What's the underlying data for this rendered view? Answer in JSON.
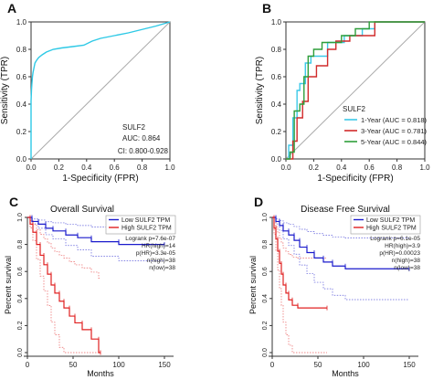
{
  "chart_data": [
    {
      "panel": "A",
      "type": "line",
      "xlabel": "1-Specificity (FPR)",
      "ylabel": "Sensitivity (TPR)",
      "xlim": [
        0,
        1
      ],
      "ylim": [
        0,
        1
      ],
      "xticks": [
        "0.0",
        "0.2",
        "0.4",
        "0.6",
        "0.8",
        "1.0"
      ],
      "yticks": [
        "0.0",
        "0.2",
        "0.4",
        "0.6",
        "0.8",
        "1.0"
      ],
      "grid": false,
      "series": [
        {
          "name": "SULF2",
          "color": "#2ec9e6",
          "x": [
            0,
            0,
            0.003,
            0.006,
            0.01,
            0.014,
            0.02,
            0.028,
            0.04,
            0.055,
            0.08,
            0.11,
            0.16,
            0.22,
            0.3,
            0.38,
            0.44,
            0.5,
            0.6,
            0.7,
            0.82,
            0.9,
            1.0
          ],
          "y": [
            0,
            0.42,
            0.5,
            0.55,
            0.6,
            0.63,
            0.66,
            0.7,
            0.72,
            0.74,
            0.76,
            0.78,
            0.8,
            0.81,
            0.82,
            0.83,
            0.86,
            0.88,
            0.9,
            0.92,
            0.95,
            0.97,
            1.0
          ]
        }
      ],
      "diagonal": true,
      "legend_title": "SULF2",
      "annotations": [
        "AUC: 0.864",
        "CI: 0.800-0.928"
      ]
    },
    {
      "panel": "B",
      "type": "line",
      "xlabel": "1-Specificity (FPR)",
      "ylabel": "Sensitivity (TPR)",
      "xlim": [
        0,
        1
      ],
      "ylim": [
        0,
        1
      ],
      "xticks": [
        "0.0",
        "0.2",
        "0.4",
        "0.6",
        "0.8",
        "1.0"
      ],
      "yticks": [
        "0.0",
        "0.2",
        "0.4",
        "0.6",
        "0.8",
        "1.0"
      ],
      "grid": false,
      "diagonal": true,
      "legend_title": "SULF2",
      "legend_position": "bottom-right",
      "series": [
        {
          "name": "1-Year (AUC = 0.818)",
          "color": "#3cc8e8",
          "x": [
            0,
            0.02,
            0.02,
            0.05,
            0.05,
            0.08,
            0.08,
            0.1,
            0.1,
            0.14,
            0.14,
            0.18,
            0.18,
            0.3,
            0.3,
            0.42,
            0.42,
            0.55,
            0.55,
            0.64,
            0.64,
            1.0
          ],
          "y": [
            0,
            0,
            0.1,
            0.1,
            0.3,
            0.3,
            0.5,
            0.5,
            0.55,
            0.55,
            0.7,
            0.7,
            0.75,
            0.75,
            0.85,
            0.85,
            0.9,
            0.9,
            0.95,
            0.95,
            1.0,
            1.0
          ]
        },
        {
          "name": "3-Year (AUC = 0.781)",
          "color": "#d12b2b",
          "x": [
            0,
            0.05,
            0.05,
            0.08,
            0.08,
            0.12,
            0.12,
            0.16,
            0.16,
            0.22,
            0.22,
            0.3,
            0.3,
            0.36,
            0.36,
            0.46,
            0.46,
            0.64,
            0.64,
            1.0
          ],
          "y": [
            0,
            0,
            0.13,
            0.13,
            0.3,
            0.3,
            0.42,
            0.42,
            0.6,
            0.6,
            0.68,
            0.68,
            0.8,
            0.8,
            0.86,
            0.86,
            0.9,
            0.9,
            1.0,
            1.0
          ]
        },
        {
          "name": "5-Year (AUC = 0.844)",
          "color": "#2e9e3a",
          "x": [
            0,
            0.03,
            0.03,
            0.06,
            0.06,
            0.1,
            0.1,
            0.13,
            0.13,
            0.16,
            0.16,
            0.2,
            0.2,
            0.26,
            0.26,
            0.4,
            0.4,
            0.5,
            0.5,
            0.6,
            0.6,
            1.0
          ],
          "y": [
            0,
            0,
            0.05,
            0.05,
            0.35,
            0.35,
            0.4,
            0.4,
            0.6,
            0.6,
            0.75,
            0.75,
            0.8,
            0.8,
            0.85,
            0.85,
            0.9,
            0.9,
            0.95,
            0.95,
            1.0,
            1.0
          ]
        }
      ]
    },
    {
      "panel": "C",
      "type": "line",
      "title": "Overall Survival",
      "xlabel": "Months",
      "ylabel": "Percent survival",
      "xlim": [
        0,
        160
      ],
      "ylim": [
        0,
        1
      ],
      "xticks": [
        "0",
        "50",
        "100",
        "150"
      ],
      "yticks": [
        "0.0",
        "0.2",
        "0.4",
        "0.6",
        "0.8",
        "1.0"
      ],
      "legend_position": "top-right",
      "stats": [
        "Logrank p=7.6e-07",
        "HR(high)=14",
        "p(HR)=3.3e-05",
        "n(high)=38",
        "n(low)=38"
      ],
      "series": [
        {
          "name": "Low SULF2 TPM",
          "color": "#1a1acc",
          "x": [
            0,
            5,
            5,
            12,
            12,
            20,
            20,
            28,
            28,
            42,
            42,
            55,
            55,
            70,
            70,
            100,
            100,
            150
          ],
          "y": [
            1.0,
            1.0,
            0.97,
            0.97,
            0.95,
            0.95,
            0.92,
            0.92,
            0.9,
            0.9,
            0.87,
            0.87,
            0.85,
            0.85,
            0.82,
            0.82,
            0.8,
            0.8
          ]
        },
        {
          "name": "High SULF2 TPM",
          "color": "#e02020",
          "x": [
            0,
            3,
            3,
            6,
            6,
            10,
            10,
            14,
            14,
            18,
            18,
            22,
            22,
            26,
            26,
            30,
            30,
            35,
            35,
            40,
            40,
            46,
            46,
            52,
            52,
            60,
            60,
            70,
            70,
            78,
            78,
            80
          ],
          "y": [
            1.0,
            1.0,
            0.95,
            0.95,
            0.89,
            0.89,
            0.8,
            0.8,
            0.72,
            0.72,
            0.65,
            0.65,
            0.58,
            0.58,
            0.5,
            0.5,
            0.44,
            0.44,
            0.38,
            0.38,
            0.33,
            0.33,
            0.27,
            0.27,
            0.22,
            0.22,
            0.17,
            0.17,
            0.1,
            0.1,
            0.0,
            0.0
          ]
        }
      ]
    },
    {
      "panel": "D",
      "type": "line",
      "title": "Disease Free Survival",
      "xlabel": "Months",
      "ylabel": "Percent survival",
      "xlim": [
        0,
        160
      ],
      "ylim": [
        0,
        1
      ],
      "xticks": [
        "0",
        "50",
        "100",
        "150"
      ],
      "yticks": [
        "0.0",
        "0.2",
        "0.4",
        "0.6",
        "0.8",
        "1.0"
      ],
      "legend_position": "top-right",
      "stats": [
        "Logrank p=6.1e-05",
        "HR(high)=3.9",
        "p(HR)=0.00023",
        "n(high)=38",
        "n(low)=38"
      ],
      "series": [
        {
          "name": "Low SULF2 TPM",
          "color": "#1a1acc",
          "x": [
            0,
            4,
            4,
            8,
            8,
            12,
            12,
            18,
            18,
            24,
            24,
            30,
            30,
            38,
            38,
            46,
            46,
            56,
            56,
            66,
            66,
            80,
            80,
            150
          ],
          "y": [
            1.0,
            1.0,
            0.97,
            0.97,
            0.94,
            0.94,
            0.9,
            0.9,
            0.87,
            0.87,
            0.83,
            0.83,
            0.78,
            0.78,
            0.74,
            0.74,
            0.7,
            0.7,
            0.67,
            0.67,
            0.64,
            0.64,
            0.62,
            0.62
          ]
        },
        {
          "name": "High SULF2 TPM",
          "color": "#e02020",
          "x": [
            0,
            2,
            2,
            4,
            4,
            6,
            6,
            8,
            8,
            10,
            10,
            12,
            12,
            15,
            15,
            18,
            18,
            22,
            22,
            28,
            28,
            60
          ],
          "y": [
            1.0,
            1.0,
            0.92,
            0.92,
            0.84,
            0.84,
            0.75,
            0.75,
            0.66,
            0.66,
            0.58,
            0.58,
            0.5,
            0.5,
            0.44,
            0.44,
            0.39,
            0.39,
            0.35,
            0.35,
            0.33,
            0.33
          ]
        }
      ]
    }
  ]
}
